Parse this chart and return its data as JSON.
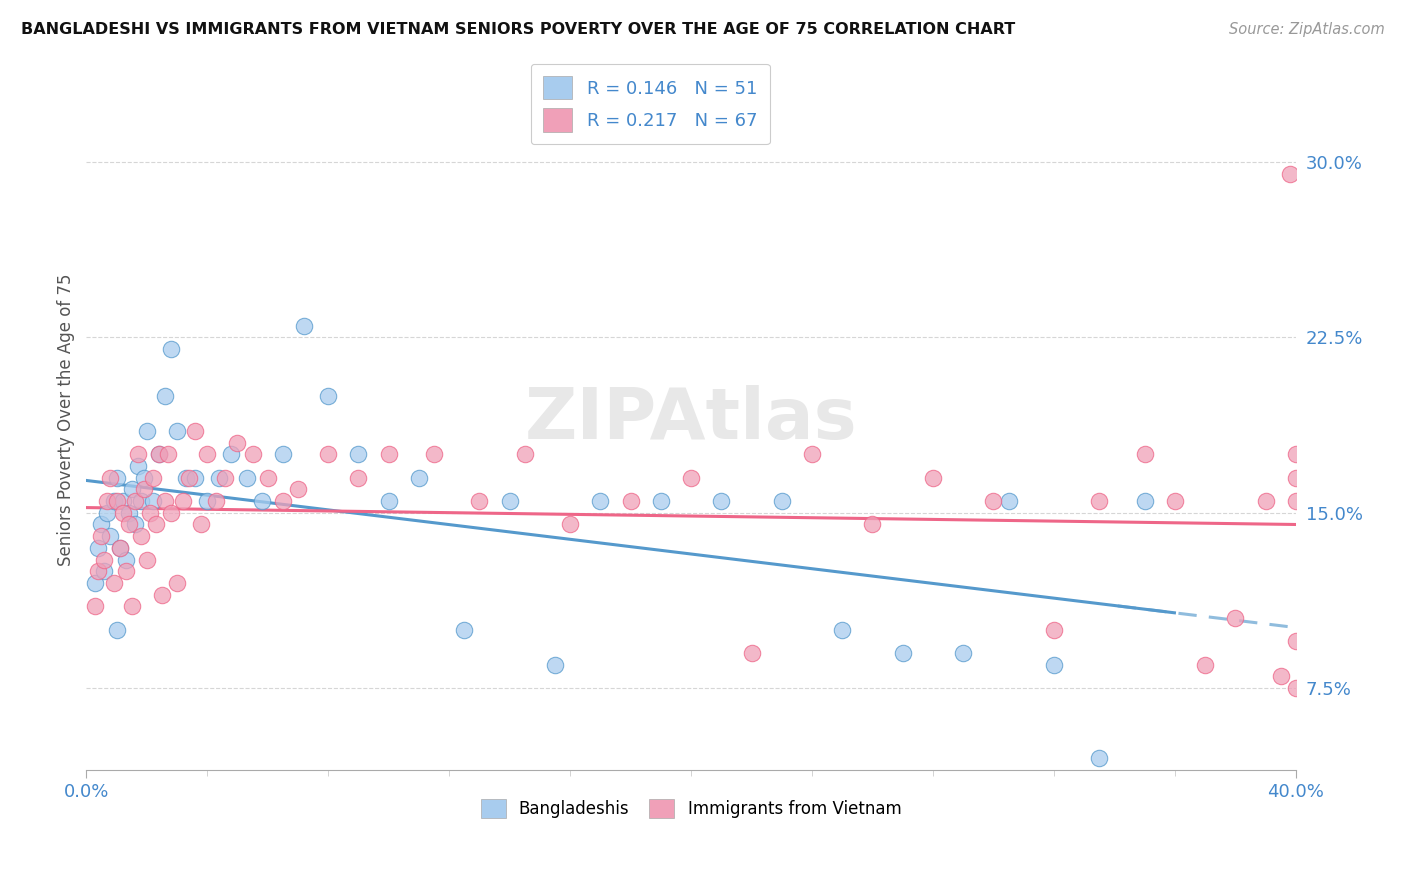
{
  "title": "BANGLADESHI VS IMMIGRANTS FROM VIETNAM SENIORS POVERTY OVER THE AGE OF 75 CORRELATION CHART",
  "source": "Source: ZipAtlas.com",
  "ylabel": "Seniors Poverty Over the Age of 75",
  "xlim": [
    0.0,
    0.4
  ],
  "ylim": [
    0.04,
    0.34
  ],
  "yticks": [
    0.075,
    0.15,
    0.225,
    0.3
  ],
  "ytick_labels": [
    "7.5%",
    "15.0%",
    "22.5%",
    "30.0%"
  ],
  "color_blue": "#A8CCEE",
  "color_pink": "#F0A0B8",
  "color_blue_line": "#5599CC",
  "color_pink_line": "#EE6688",
  "watermark": "ZIPAtlas",
  "bd_x": [
    0.003,
    0.004,
    0.005,
    0.006,
    0.007,
    0.008,
    0.009,
    0.01,
    0.01,
    0.011,
    0.012,
    0.013,
    0.014,
    0.015,
    0.016,
    0.017,
    0.018,
    0.019,
    0.02,
    0.022,
    0.024,
    0.026,
    0.028,
    0.03,
    0.033,
    0.036,
    0.04,
    0.044,
    0.048,
    0.053,
    0.058,
    0.065,
    0.072,
    0.08,
    0.09,
    0.1,
    0.11,
    0.125,
    0.14,
    0.155,
    0.17,
    0.19,
    0.21,
    0.23,
    0.25,
    0.27,
    0.29,
    0.305,
    0.32,
    0.335,
    0.35
  ],
  "bd_y": [
    0.12,
    0.135,
    0.145,
    0.125,
    0.15,
    0.14,
    0.155,
    0.165,
    0.1,
    0.135,
    0.155,
    0.13,
    0.15,
    0.16,
    0.145,
    0.17,
    0.155,
    0.165,
    0.185,
    0.155,
    0.175,
    0.2,
    0.22,
    0.185,
    0.165,
    0.165,
    0.155,
    0.165,
    0.175,
    0.165,
    0.155,
    0.175,
    0.23,
    0.2,
    0.175,
    0.155,
    0.165,
    0.1,
    0.155,
    0.085,
    0.155,
    0.155,
    0.155,
    0.155,
    0.1,
    0.09,
    0.09,
    0.155,
    0.085,
    0.045,
    0.155
  ],
  "vn_x": [
    0.003,
    0.004,
    0.005,
    0.006,
    0.007,
    0.008,
    0.009,
    0.01,
    0.011,
    0.012,
    0.013,
    0.014,
    0.015,
    0.016,
    0.017,
    0.018,
    0.019,
    0.02,
    0.021,
    0.022,
    0.023,
    0.024,
    0.025,
    0.026,
    0.027,
    0.028,
    0.03,
    0.032,
    0.034,
    0.036,
    0.038,
    0.04,
    0.043,
    0.046,
    0.05,
    0.055,
    0.06,
    0.065,
    0.07,
    0.08,
    0.09,
    0.1,
    0.115,
    0.13,
    0.145,
    0.16,
    0.18,
    0.2,
    0.22,
    0.24,
    0.26,
    0.28,
    0.3,
    0.32,
    0.335,
    0.35,
    0.36,
    0.37,
    0.38,
    0.39,
    0.395,
    0.398,
    0.4,
    0.4,
    0.4,
    0.4,
    0.4
  ],
  "vn_y": [
    0.11,
    0.125,
    0.14,
    0.13,
    0.155,
    0.165,
    0.12,
    0.155,
    0.135,
    0.15,
    0.125,
    0.145,
    0.11,
    0.155,
    0.175,
    0.14,
    0.16,
    0.13,
    0.15,
    0.165,
    0.145,
    0.175,
    0.115,
    0.155,
    0.175,
    0.15,
    0.12,
    0.155,
    0.165,
    0.185,
    0.145,
    0.175,
    0.155,
    0.165,
    0.18,
    0.175,
    0.165,
    0.155,
    0.16,
    0.175,
    0.165,
    0.175,
    0.175,
    0.155,
    0.175,
    0.145,
    0.155,
    0.165,
    0.09,
    0.175,
    0.145,
    0.165,
    0.155,
    0.1,
    0.155,
    0.175,
    0.155,
    0.085,
    0.105,
    0.155,
    0.08,
    0.295,
    0.175,
    0.095,
    0.075,
    0.155,
    0.165
  ]
}
